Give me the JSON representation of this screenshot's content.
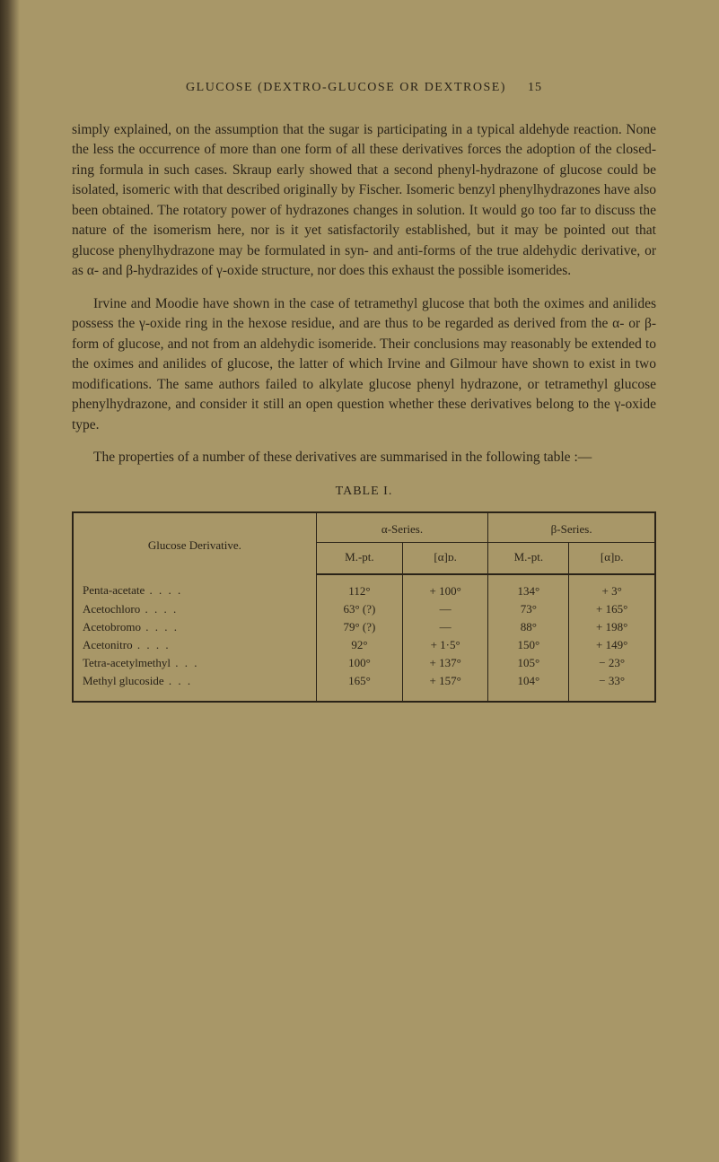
{
  "header": {
    "title": "GLUCOSE (DEXTRO-GLUCOSE OR DEXTROSE)",
    "page_number": "15"
  },
  "paragraphs": {
    "p1": "simply explained, on the assumption that the sugar is participating in a typical aldehyde reaction. None the less the occurrence of more than one form of all these derivatives forces the adoption of the closed-ring formula in such cases. Skraup early showed that a second phenyl-hydrazone of glucose could be isolated, isomeric with that described originally by Fischer. Isomeric benzyl phenylhydrazones have also been obtained. The rotatory power of hydrazones changes in solution. It would go too far to discuss the nature of the isomerism here, nor is it yet satisfactorily established, but it may be pointed out that glucose phenylhydrazone may be formulated in syn- and anti-forms of the true aldehydic derivative, or as α- and β-hydrazides of γ-oxide structure, nor does this exhaust the possible isomerides.",
    "p2": "Irvine and Moodie have shown in the case of tetramethyl glucose that both the oximes and anilides possess the γ-oxide ring in the hexose residue, and are thus to be regarded as derived from the α- or β-form of glucose, and not from an aldehydic isomeride. Their conclusions may reasonably be extended to the oximes and anilides of glucose, the latter of which Irvine and Gilmour have shown to exist in two modifications. The same authors failed to alkylate glucose phenyl hydrazone, or tetramethyl glucose phenylhydrazone, and consider it still an open question whether these derivatives belong to the γ-oxide type.",
    "p3": "The properties of a number of these derivatives are summarised in the following table :—"
  },
  "table": {
    "label": "TABLE I.",
    "col_headers": {
      "derivative": "Glucose Derivative.",
      "alpha_series": "α-Series.",
      "beta_series": "β-Series.",
      "mpt": "M.-pt.",
      "alpha_d": "[α]ᴅ."
    },
    "rows": [
      {
        "name": "Penta-acetate",
        "alpha_mpt": "112°",
        "alpha_d": "+ 100°",
        "beta_mpt": "134°",
        "beta_d": "+ 3°"
      },
      {
        "name": "Acetochloro",
        "alpha_mpt": "63° (?)",
        "alpha_d": "—",
        "beta_mpt": "73°",
        "beta_d": "+ 165°"
      },
      {
        "name": "Acetobromo",
        "alpha_mpt": "79° (?)",
        "alpha_d": "—",
        "beta_mpt": "88°",
        "beta_d": "+ 198°"
      },
      {
        "name": "Acetonitro",
        "alpha_mpt": "92°",
        "alpha_d": "+ 1·5°",
        "beta_mpt": "150°",
        "beta_d": "+ 149°"
      },
      {
        "name": "Tetra-acetylmethyl",
        "alpha_mpt": "100°",
        "alpha_d": "+ 137°",
        "beta_mpt": "105°",
        "beta_d": "− 23°"
      },
      {
        "name": "Methyl glucoside",
        "alpha_mpt": "165°",
        "alpha_d": "+ 157°",
        "beta_mpt": "104°",
        "beta_d": "− 33°"
      }
    ]
  },
  "colors": {
    "page_bg": "#a89768",
    "text": "#2a2318",
    "border": "#2a2318"
  },
  "typography": {
    "body_font_size": 15.5,
    "header_font_size": 14,
    "table_font_size": 13
  }
}
